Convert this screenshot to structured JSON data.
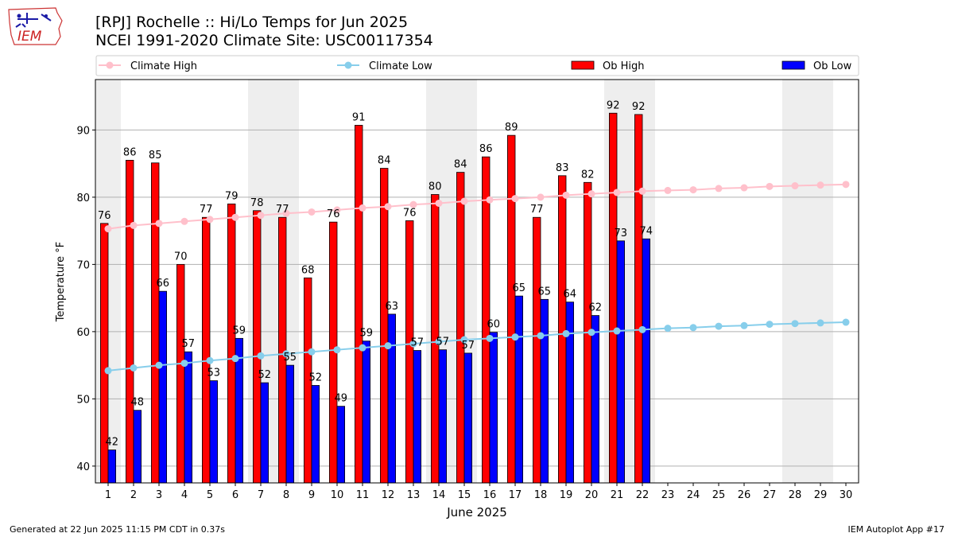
{
  "header": {
    "title_line1": "[RPJ] Rochelle :: Hi/Lo Temps for Jun 2025",
    "title_line2": "NCEI 1991-2020 Climate Site: USC00117354"
  },
  "footer": {
    "generated": "Generated at 22 Jun 2025 11:15 PM CDT in 0.37s",
    "app": "IEM Autoplot App #17"
  },
  "logo": {
    "text": "IEM",
    "icon": "iem-iowa-logo-icon"
  },
  "chart_data": {
    "type": "bar",
    "xlabel": "June 2025",
    "ylabel": "Temperature °F",
    "xlim": [
      1,
      30
    ],
    "ylim": [
      37.5,
      97.5
    ],
    "yticks": [
      40,
      50,
      60,
      70,
      80,
      90
    ],
    "grid": "horizontal",
    "legend_position": "top",
    "weekend_shading_days": [
      1,
      7,
      8,
      14,
      15,
      21,
      22,
      28,
      29
    ],
    "categories": [
      1,
      2,
      3,
      4,
      5,
      6,
      7,
      8,
      9,
      10,
      11,
      12,
      13,
      14,
      15,
      16,
      17,
      18,
      19,
      20,
      21,
      22,
      23,
      24,
      25,
      26,
      27,
      28,
      29,
      30
    ],
    "series": [
      {
        "name": "Climate High",
        "kind": "line",
        "color": "#ffc0cb",
        "values": [
          75.3,
          75.8,
          76.1,
          76.4,
          76.7,
          77.0,
          77.3,
          77.6,
          77.8,
          78.1,
          78.4,
          78.6,
          78.9,
          79.1,
          79.4,
          79.6,
          79.8,
          80.0,
          80.3,
          80.5,
          80.7,
          80.9,
          81.0,
          81.1,
          81.3,
          81.4,
          81.6,
          81.7,
          81.8,
          81.9
        ]
      },
      {
        "name": "Climate Low",
        "kind": "line",
        "color": "#87ceeb",
        "values": [
          54.2,
          54.6,
          55.0,
          55.3,
          55.7,
          56.0,
          56.4,
          56.7,
          57.0,
          57.3,
          57.6,
          57.9,
          58.2,
          58.5,
          58.8,
          59.0,
          59.2,
          59.4,
          59.7,
          59.9,
          60.1,
          60.3,
          60.5,
          60.6,
          60.8,
          60.9,
          61.1,
          61.2,
          61.3,
          61.4
        ]
      },
      {
        "name": "Ob High",
        "kind": "bar",
        "color": "#ff0000",
        "values": [
          76,
          86,
          85,
          70,
          77,
          79,
          78,
          77,
          68,
          76,
          91,
          84,
          76,
          80,
          84,
          86,
          89,
          77,
          83,
          82,
          92,
          92,
          null,
          null,
          null,
          null,
          null,
          null,
          null,
          null
        ],
        "bar_heights": [
          76.1,
          85.5,
          85.1,
          70.0,
          77.0,
          79.0,
          78.0,
          77.0,
          68.0,
          76.3,
          90.7,
          84.3,
          76.5,
          80.4,
          83.7,
          86.0,
          89.2,
          77.0,
          83.2,
          82.2,
          92.5,
          92.3,
          null,
          null,
          null,
          null,
          null,
          null,
          null,
          null
        ]
      },
      {
        "name": "Ob Low",
        "kind": "bar",
        "color": "#0000ff",
        "values": [
          42,
          48,
          66,
          57,
          53,
          59,
          52,
          55,
          52,
          49,
          59,
          63,
          57,
          57,
          57,
          60,
          65,
          65,
          64,
          62,
          73,
          74,
          null,
          null,
          null,
          null,
          null,
          null,
          null,
          null
        ],
        "bar_heights": [
          42.4,
          48.3,
          66.0,
          57.0,
          52.7,
          59.0,
          52.4,
          55.0,
          52.0,
          48.9,
          58.6,
          62.6,
          57.2,
          57.3,
          56.8,
          59.9,
          65.3,
          64.8,
          64.4,
          62.4,
          73.5,
          73.8,
          null,
          null,
          null,
          null,
          null,
          null,
          null,
          null
        ]
      }
    ]
  }
}
